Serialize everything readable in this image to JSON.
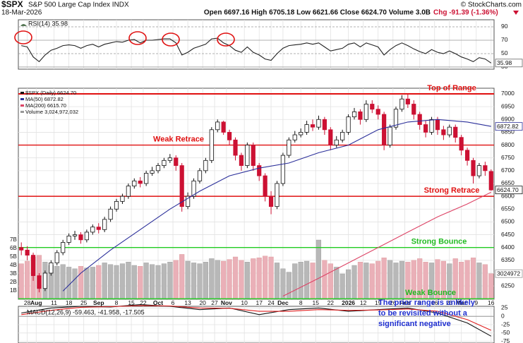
{
  "header": {
    "symbol": "$SPX",
    "name": "S&P 500 Large Cap Index INDX",
    "date": "18-Mar-2026",
    "source": "© StockCharts.com",
    "ohlc": "Open 6697.16 High 6705.18 Low 6621.66 Close 6624.70 Volume 3.0B",
    "change": "Chg -91.39 (-1.36%)"
  },
  "chart_data": [
    {
      "type": "line",
      "legend": "RSI(14) 35.98",
      "ylim": [
        26.8,
        100.5
      ],
      "yticks": [
        90,
        70,
        50,
        30
      ],
      "color": "#222222",
      "value_label": "35.98",
      "values": [
        62,
        60,
        45,
        38,
        48,
        55,
        58,
        62,
        63,
        62,
        58,
        62,
        64,
        60,
        64,
        66,
        68,
        67,
        70,
        71,
        66,
        70,
        70,
        71,
        72,
        72,
        66,
        48,
        52,
        58,
        61,
        64,
        72,
        73,
        66,
        62,
        55,
        52,
        60,
        52,
        48,
        42,
        40,
        50,
        58,
        62,
        63,
        64,
        66,
        64,
        66,
        60,
        54,
        56,
        58,
        64,
        66,
        60,
        66,
        63,
        60,
        48,
        56,
        62,
        66,
        62,
        57,
        53,
        50,
        56,
        52,
        50,
        54,
        50,
        45,
        42,
        38,
        44,
        42,
        35.98
      ]
    },
    {
      "type": "candlestick",
      "candle_name": "$SPX (Daily) 6624.70",
      "value_label": "6624.70",
      "up_color": "#ffffff",
      "down_color": "#cc1133",
      "xlim": [
        0,
        80
      ],
      "xticks": [
        {
          "value": 1,
          "label": "28"
        },
        {
          "value": 2.5,
          "label": "Aug"
        },
        {
          "value": 5.5,
          "label": "11"
        },
        {
          "value": 8,
          "label": "18"
        },
        {
          "value": 10.5,
          "label": "25"
        },
        {
          "value": 13,
          "label": "Sep"
        },
        {
          "value": 16,
          "label": "8"
        },
        {
          "value": 18.5,
          "label": "15"
        },
        {
          "value": 20.5,
          "label": "22"
        },
        {
          "value": 23,
          "label": "Oct"
        },
        {
          "value": 25.5,
          "label": "6"
        },
        {
          "value": 28,
          "label": "13"
        },
        {
          "value": 30.5,
          "label": "20"
        },
        {
          "value": 32.5,
          "label": "27"
        },
        {
          "value": 34.5,
          "label": "Nov"
        },
        {
          "value": 37.5,
          "label": "10"
        },
        {
          "value": 40,
          "label": "17"
        },
        {
          "value": 42,
          "label": "24"
        },
        {
          "value": 44,
          "label": "Dec"
        },
        {
          "value": 47,
          "label": "8"
        },
        {
          "value": 49.5,
          "label": "15"
        },
        {
          "value": 52,
          "label": "22"
        },
        {
          "value": 55,
          "label": "2026"
        },
        {
          "value": 57.5,
          "label": "12"
        },
        {
          "value": 60,
          "label": "19"
        },
        {
          "value": 62.5,
          "label": "26"
        },
        {
          "value": 64.5,
          "label": "Feb"
        },
        {
          "value": 67,
          "label": "9"
        },
        {
          "value": 69.5,
          "label": "16"
        },
        {
          "value": 72,
          "label": "23"
        },
        {
          "value": 74,
          "label": "Mar"
        },
        {
          "value": 76.5,
          "label": "9"
        },
        {
          "value": 79,
          "label": "16"
        }
      ],
      "ylim": [
        6198,
        7022
      ],
      "yticks": [
        7000,
        6950,
        6900,
        6850,
        6800,
        6750,
        6700,
        6650,
        6600,
        6550,
        6500,
        6450,
        6400,
        6350,
        6300,
        6250
      ],
      "candles": [
        [
          6400,
          6420,
          6370,
          6390
        ],
        [
          6390,
          6405,
          6350,
          6370
        ],
        [
          6370,
          6380,
          6270,
          6290
        ],
        [
          6290,
          6300,
          6225,
          6240
        ],
        [
          6240,
          6310,
          6230,
          6300
        ],
        [
          6300,
          6350,
          6290,
          6340
        ],
        [
          6340,
          6390,
          6330,
          6380
        ],
        [
          6380,
          6430,
          6370,
          6420
        ],
        [
          6420,
          6455,
          6410,
          6445
        ],
        [
          6445,
          6465,
          6430,
          6450
        ],
        [
          6450,
          6460,
          6415,
          6430
        ],
        [
          6430,
          6470,
          6420,
          6460
        ],
        [
          6460,
          6490,
          6450,
          6480
        ],
        [
          6480,
          6495,
          6455,
          6470
        ],
        [
          6470,
          6520,
          6460,
          6510
        ],
        [
          6510,
          6560,
          6500,
          6550
        ],
        [
          6550,
          6590,
          6540,
          6580
        ],
        [
          6580,
          6610,
          6570,
          6600
        ],
        [
          6600,
          6650,
          6590,
          6640
        ],
        [
          6640,
          6670,
          6630,
          6660
        ],
        [
          6660,
          6675,
          6635,
          6650
        ],
        [
          6650,
          6700,
          6640,
          6690
        ],
        [
          6690,
          6715,
          6680,
          6700
        ],
        [
          6700,
          6730,
          6690,
          6720
        ],
        [
          6720,
          6750,
          6710,
          6740
        ],
        [
          6740,
          6765,
          6730,
          6750
        ],
        [
          6750,
          6760,
          6700,
          6720
        ],
        [
          6720,
          6730,
          6540,
          6560
        ],
        [
          6560,
          6615,
          6550,
          6600
        ],
        [
          6600,
          6670,
          6590,
          6660
        ],
        [
          6660,
          6710,
          6650,
          6700
        ],
        [
          6700,
          6750,
          6690,
          6740
        ],
        [
          6740,
          6870,
          6730,
          6860
        ],
        [
          6860,
          6900,
          6850,
          6890
        ],
        [
          6890,
          6895,
          6840,
          6850
        ],
        [
          6850,
          6860,
          6800,
          6820
        ],
        [
          6820,
          6830,
          6740,
          6760
        ],
        [
          6760,
          6770,
          6700,
          6720
        ],
        [
          6720,
          6810,
          6710,
          6800
        ],
        [
          6800,
          6810,
          6700,
          6720
        ],
        [
          6720,
          6730,
          6660,
          6680
        ],
        [
          6680,
          6690,
          6580,
          6600
        ],
        [
          6600,
          6620,
          6530,
          6560
        ],
        [
          6560,
          6660,
          6550,
          6650
        ],
        [
          6650,
          6770,
          6640,
          6760
        ],
        [
          6760,
          6830,
          6750,
          6820
        ],
        [
          6820,
          6855,
          6810,
          6840
        ],
        [
          6840,
          6865,
          6830,
          6850
        ],
        [
          6850,
          6895,
          6840,
          6880
        ],
        [
          6880,
          6900,
          6855,
          6870
        ],
        [
          6870,
          6915,
          6860,
          6900
        ],
        [
          6900,
          6910,
          6840,
          6860
        ],
        [
          6860,
          6870,
          6780,
          6800
        ],
        [
          6800,
          6835,
          6790,
          6820
        ],
        [
          6820,
          6860,
          6810,
          6850
        ],
        [
          6850,
          6920,
          6840,
          6910
        ],
        [
          6910,
          6945,
          6900,
          6930
        ],
        [
          6930,
          6940,
          6880,
          6900
        ],
        [
          6900,
          6975,
          6890,
          6960
        ],
        [
          6960,
          6975,
          6925,
          6940
        ],
        [
          6940,
          6955,
          6900,
          6920
        ],
        [
          6920,
          6930,
          6780,
          6800
        ],
        [
          6800,
          6880,
          6790,
          6870
        ],
        [
          6870,
          6950,
          6860,
          6940
        ],
        [
          6940,
          6995,
          6930,
          6980
        ],
        [
          6980,
          7000,
          6945,
          6960
        ],
        [
          6960,
          6975,
          6900,
          6920
        ],
        [
          6920,
          6930,
          6860,
          6880
        ],
        [
          6880,
          6895,
          6830,
          6850
        ],
        [
          6850,
          6910,
          6840,
          6900
        ],
        [
          6900,
          6910,
          6840,
          6860
        ],
        [
          6860,
          6875,
          6820,
          6840
        ],
        [
          6840,
          6880,
          6830,
          6870
        ],
        [
          6870,
          6880,
          6810,
          6830
        ],
        [
          6830,
          6840,
          6760,
          6780
        ],
        [
          6780,
          6790,
          6720,
          6740
        ],
        [
          6740,
          6750,
          6650,
          6680
        ],
        [
          6680,
          6730,
          6670,
          6720
        ],
        [
          6720,
          6735,
          6680,
          6700
        ],
        [
          6697.16,
          6705.18,
          6621.66,
          6624.7
        ]
      ],
      "series": [
        {
          "name": "MA(50) 6872.82",
          "color": "#2b2f9a",
          "value_label": "6872.82",
          "x": [
            7,
            10,
            15,
            20,
            25,
            30,
            35,
            40,
            45,
            50,
            55,
            60,
            65,
            70,
            75,
            79
          ],
          "values": [
            6230,
            6300,
            6390,
            6470,
            6550,
            6620,
            6680,
            6710,
            6730,
            6770,
            6800,
            6860,
            6890,
            6900,
            6890,
            6872.82
          ]
        },
        {
          "name": "MA(200) 6615.70",
          "color": "#dd4466",
          "x": [
            44,
            50,
            55,
            60,
            65,
            70,
            75,
            79
          ],
          "values": [
            6210,
            6280,
            6340,
            6400,
            6460,
            6520,
            6570,
            6615.7
          ]
        }
      ],
      "volume_name": "Volume 3,024,972,032",
      "volume_box_label": "3024972",
      "vlim": [
        0,
        24.92
      ],
      "vticks": [
        {
          "value": 7,
          "label": "7B"
        },
        {
          "value": 6,
          "label": "6B"
        },
        {
          "value": 5,
          "label": "5B"
        },
        {
          "value": 4,
          "label": "4B"
        },
        {
          "value": 3,
          "label": "3B"
        },
        {
          "value": 2,
          "label": "2B"
        },
        {
          "value": 1,
          "label": "1B"
        }
      ],
      "volume": [
        4.2,
        4.5,
        5.0,
        5.2,
        4.4,
        4.0,
        3.9,
        4.1,
        3.8,
        3.6,
        3.9,
        3.7,
        3.8,
        4.0,
        4.3,
        4.1,
        4.0,
        4.2,
        4.4,
        4.0,
        3.9,
        4.3,
        4.1,
        4.0,
        4.2,
        4.4,
        4.6,
        5.3,
        4.5,
        4.3,
        4.2,
        4.4,
        4.8,
        4.6,
        4.5,
        4.7,
        5.0,
        4.6,
        4.4,
        4.8,
        4.9,
        5.1,
        5.0,
        4.3,
        3.6,
        3.2,
        4.2,
        4.4,
        4.5,
        4.3,
        7.0,
        4.6,
        4.2,
        3.8,
        3.0,
        3.5,
        4.0,
        4.4,
        4.3,
        4.2,
        4.5,
        4.9,
        4.6,
        4.3,
        4.5,
        4.4,
        4.6,
        4.8,
        4.4,
        4.3,
        4.7,
        4.5,
        4.2,
        4.8,
        4.4,
        4.6,
        4.9,
        4.3,
        4.1,
        3.024972032
      ],
      "levels": [
        {
          "label": "Top of Range",
          "value": 7000,
          "color": "#e01010"
        },
        {
          "label": "Weak Retrace",
          "value": 6800,
          "color": "#e01010"
        },
        {
          "label": "Strong Retrace",
          "value": 6600,
          "color": "#e01010"
        },
        {
          "label": "Strong Bounce",
          "value": 6400,
          "color": "#22cc22"
        },
        {
          "label": "Weak Bounce",
          "value": 6200,
          "color": "#22cc22"
        }
      ]
    },
    {
      "type": "line",
      "legend": "MACD(12,26,9) -59.463, -41.958, -17.505",
      "ylim": [
        -80,
        30
      ],
      "yticks": [
        25,
        0,
        -25,
        -50,
        -75
      ],
      "series": [
        {
          "name": "MACD",
          "color": "#111111",
          "x": [
            0,
            5,
            10,
            15,
            20,
            25,
            30,
            35,
            40,
            45,
            50,
            55,
            60,
            65,
            70,
            75,
            79
          ],
          "values": [
            10,
            25,
            30,
            28,
            35,
            30,
            20,
            25,
            5,
            20,
            25,
            15,
            20,
            25,
            10,
            -20,
            -59.463
          ]
        },
        {
          "name": "Signal",
          "color": "#e02020",
          "x": [
            0,
            5,
            10,
            15,
            20,
            25,
            30,
            35,
            40,
            45,
            50,
            55,
            60,
            65,
            70,
            75,
            79
          ],
          "values": [
            5,
            18,
            27,
            29,
            32,
            31,
            25,
            24,
            15,
            15,
            20,
            18,
            19,
            22,
            15,
            -10,
            -41.958
          ]
        }
      ],
      "annotation": [
        "The prior range is unlikely",
        "to be revisited without a",
        "significant negative"
      ]
    }
  ]
}
